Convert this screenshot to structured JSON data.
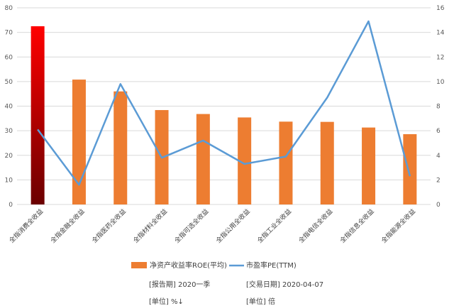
{
  "chart_data": {
    "type": "bar",
    "categories": [
      "全指消费全收益",
      "全指金融全收益",
      "全指医药全收益",
      "全指材料全收益",
      "全指可选全收益",
      "全指公用全收益",
      "全指工业全收益",
      "全指电信全收益",
      "全指信息全收益",
      "全指能源全收益"
    ],
    "series": [
      {
        "name": "净资产收益率ROE(平均)",
        "type": "bar",
        "axis": "left",
        "values": [
          72.5,
          50.8,
          46.0,
          38.4,
          36.8,
          35.4,
          33.7,
          33.6,
          31.3,
          28.6
        ]
      },
      {
        "name": "市盈率PE(TTM)",
        "type": "line",
        "axis": "right",
        "values": [
          6.1,
          1.6,
          9.8,
          3.8,
          5.2,
          3.3,
          3.9,
          8.7,
          14.9,
          2.3
        ]
      }
    ],
    "y_left": {
      "ticks": [
        0,
        10,
        20,
        30,
        40,
        50,
        60,
        70,
        80
      ],
      "ylim": [
        0,
        80
      ]
    },
    "y_right": {
      "ticks": [
        0,
        2,
        4,
        6,
        8,
        10,
        12,
        14,
        16
      ],
      "ylim": [
        0,
        16
      ]
    },
    "grid": true,
    "legend_position": "bottom",
    "colors": {
      "bar": "#ED7D31",
      "highlight_bar_top": "#FF0000",
      "highlight_bar_bottom": "#6B0000",
      "line": "#5B9BD5",
      "grid": "#D9D9D9"
    }
  },
  "meta": {
    "report_period": "[报告期] 2020一季",
    "trade_date": "[交易日期] 2020-04-07",
    "unit_left": "[单位] %↓",
    "unit_right": "[单位] 倍"
  }
}
